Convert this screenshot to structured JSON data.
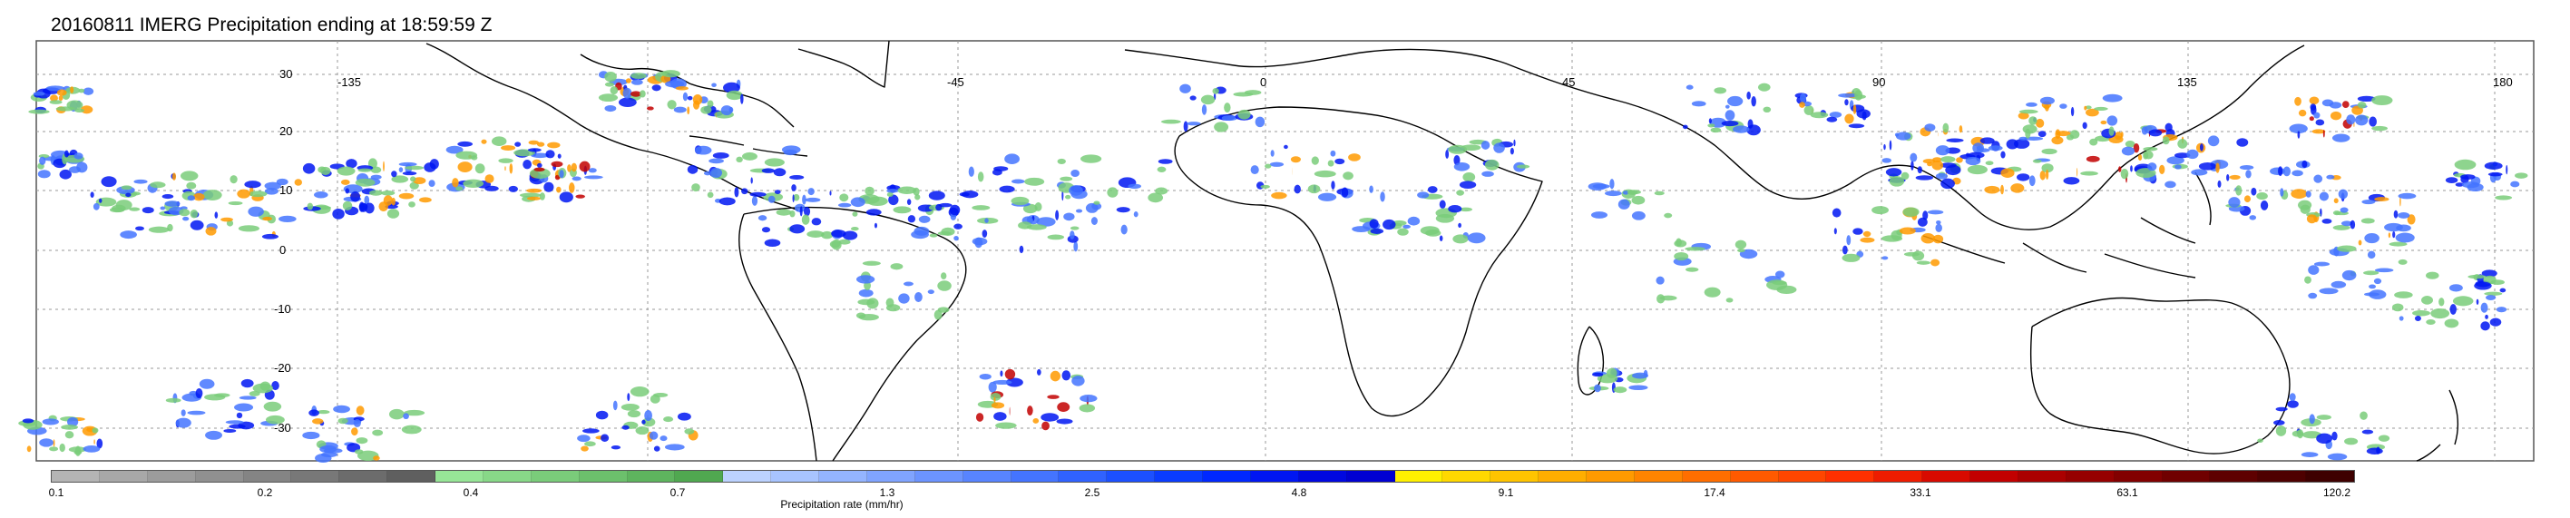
{
  "title": "20160811 IMERG Precipitation ending at 18:59:59 Z",
  "lat_labels": [
    "30",
    "20",
    "10",
    "0",
    "-10",
    "-20",
    "-30"
  ],
  "lon_labels": [
    "-135",
    "-45",
    "0",
    "45",
    "90",
    "135",
    "180"
  ],
  "colorbar": {
    "label": "Precipitation rate (mm/hr)",
    "tick_labels": [
      "0.1",
      "0.2",
      "0.4",
      "0.7",
      "1.3",
      "2.5",
      "4.8",
      "9.1",
      "17.4",
      "33.1",
      "63.1",
      "120.2"
    ],
    "colors": [
      "#b4b4b4",
      "#a8a8a8",
      "#9c9c9c",
      "#909090",
      "#848484",
      "#787878",
      "#6c6c6c",
      "#5f5f5f",
      "#97e597",
      "#88d888",
      "#7acc7a",
      "#6cc06c",
      "#5eb45e",
      "#50a850",
      "#bcd2ff",
      "#a8c4ff",
      "#94b4ff",
      "#80a4ff",
      "#6c94ff",
      "#5884ff",
      "#4474ff",
      "#3062ff",
      "#1c50ff",
      "#0a3cff",
      "#0028ff",
      "#0016f2",
      "#0008e0",
      "#0000d2",
      "#fff000",
      "#ffd800",
      "#ffc400",
      "#ffae00",
      "#ff9a00",
      "#ff8400",
      "#ff6e00",
      "#ff5a00",
      "#ff4600",
      "#ff3000",
      "#ee1c00",
      "#d80a00",
      "#c20000",
      "#ab0000",
      "#960000",
      "#820000",
      "#700000",
      "#5e0000",
      "#4e0000",
      "#3e0000"
    ]
  },
  "map_colors": {
    "land_outline": "#000000",
    "grid": "#9a9a9a",
    "frame": "#555555",
    "precip_light": "#7acc7a",
    "precip_moderate": "#4474ff",
    "precip_heavy": "#0016f2",
    "precip_intense": "#ff9a00",
    "precip_extreme": "#c20000"
  }
}
